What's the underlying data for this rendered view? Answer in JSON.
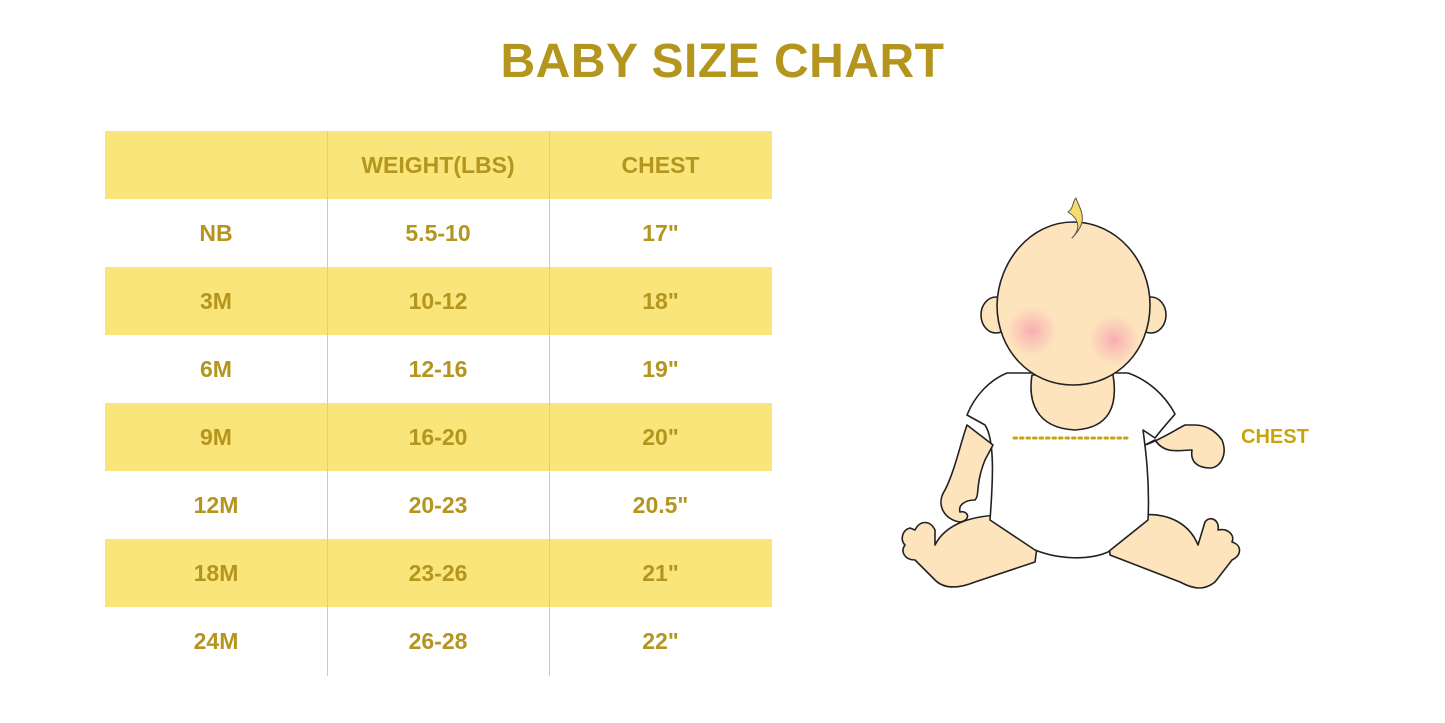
{
  "title": "BABY SIZE CHART",
  "table": {
    "headers": [
      "",
      "WEIGHT(LBS)",
      "CHEST"
    ],
    "rows": [
      [
        "NB",
        "5.5-10",
        "17\""
      ],
      [
        "3M",
        "10-12",
        "18\""
      ],
      [
        "6M",
        "12-16",
        "19\""
      ],
      [
        "9M",
        "16-20",
        "20\""
      ],
      [
        "12M",
        "20-23",
        "20.5\""
      ],
      [
        "18M",
        "23-26",
        "21\""
      ],
      [
        "24M",
        "26-28",
        "22\""
      ]
    ]
  },
  "illustration": {
    "chest_label": "CHEST"
  },
  "colors": {
    "text": "#b4951d",
    "band": "#fae57b",
    "divider": "#f7d230",
    "skin": "#fde4bd"
  }
}
